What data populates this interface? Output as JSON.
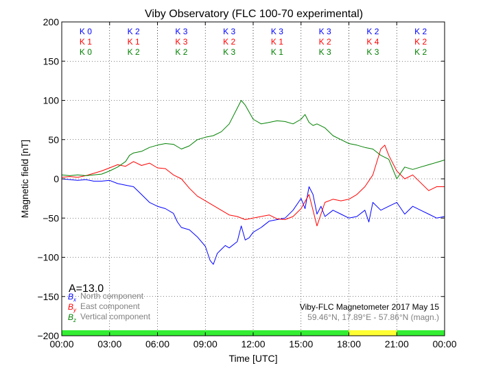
{
  "chart_data": {
    "type": "line",
    "title": "Viby Observatory (FLC 100-70 experimental)",
    "xlabel": "Time [UTC]",
    "ylabel": "Magnetic field [nT]",
    "xlim": [
      0,
      24
    ],
    "ylim": [
      -200,
      200
    ],
    "grid": true,
    "x_tick_labels": [
      "00:00",
      "03:00",
      "06:00",
      "09:00",
      "12:00",
      "15:00",
      "18:00",
      "21:00",
      "00:00"
    ],
    "y_ticks": [
      -200,
      -150,
      -100,
      -50,
      0,
      50,
      100,
      150,
      200
    ],
    "y_tick_labels": [
      "−200",
      "−150",
      "−100",
      "−50",
      "0",
      "50",
      "100",
      "150",
      "200"
    ],
    "series": [
      {
        "name": "North component",
        "symbol_main": "B",
        "symbol_sub": "x",
        "color": "#0000ff",
        "x": [
          0,
          0.5,
          1,
          1.5,
          2,
          2.5,
          3,
          3.5,
          4,
          4.5,
          5,
          5.5,
          6,
          6.5,
          7,
          7.25,
          7.5,
          8,
          8.5,
          9,
          9.3,
          9.5,
          9.75,
          10,
          10.25,
          10.5,
          11,
          11.25,
          11.5,
          11.75,
          12,
          12.5,
          13,
          13.5,
          14,
          14.5,
          15,
          15.25,
          15.5,
          15.75,
          16,
          16.25,
          16.5,
          17,
          17.5,
          18,
          18.5,
          19,
          19.25,
          19.5,
          20,
          20.5,
          21,
          21.5,
          22,
          22.5,
          23,
          23.5,
          24
        ],
        "y": [
          0,
          -1,
          -2,
          -1,
          -3,
          -3,
          -2,
          -6,
          -8,
          -10,
          -20,
          -30,
          -35,
          -38,
          -44,
          -55,
          -62,
          -65,
          -74,
          -86,
          -104,
          -109,
          -95,
          -90,
          -85,
          -88,
          -80,
          -60,
          -78,
          -75,
          -68,
          -62,
          -54,
          -52,
          -50,
          -40,
          -25,
          -38,
          -10,
          -20,
          -45,
          -35,
          -48,
          -40,
          -45,
          -50,
          -48,
          -40,
          -55,
          -30,
          -40,
          -35,
          -30,
          -45,
          -35,
          -40,
          -45,
          -50,
          -48
        ]
      },
      {
        "name": "East component",
        "symbol_main": "B",
        "symbol_sub": "y",
        "color": "#ff0000",
        "x": [
          0,
          0.5,
          1,
          1.5,
          2,
          2.5,
          3,
          3.5,
          4,
          4.5,
          5,
          5.5,
          6,
          6.5,
          7,
          7.5,
          8,
          8.5,
          9,
          9.5,
          10,
          10.5,
          11,
          11.5,
          12,
          12.5,
          13,
          13.5,
          14,
          14.5,
          15,
          15.5,
          16,
          16.5,
          17,
          17.5,
          18,
          18.5,
          19,
          19.5,
          20,
          20.25,
          20.5,
          21,
          21.5,
          22,
          22.5,
          23,
          23.5,
          24
        ],
        "y": [
          2,
          3,
          2,
          4,
          7,
          10,
          14,
          18,
          16,
          22,
          17,
          20,
          14,
          13,
          5,
          0,
          -12,
          -22,
          -28,
          -34,
          -40,
          -46,
          -48,
          -52,
          -50,
          -48,
          -46,
          -51,
          -52,
          -48,
          -38,
          -20,
          -60,
          -30,
          -26,
          -28,
          -26,
          -20,
          -10,
          5,
          38,
          43,
          30,
          10,
          0,
          5,
          -5,
          -15,
          -10,
          -10
        ]
      },
      {
        "name": "Vertical component",
        "symbol_main": "B",
        "symbol_sub": "z",
        "color": "#008000",
        "x": [
          0,
          0.5,
          1,
          1.5,
          2,
          2.5,
          3,
          3.5,
          4,
          4.25,
          4.5,
          5,
          5.5,
          6,
          6.5,
          7,
          7.5,
          8,
          8.5,
          9,
          9.5,
          10,
          10.5,
          11,
          11.25,
          11.5,
          12,
          12.5,
          13,
          13.5,
          14,
          14.5,
          15,
          15.25,
          15.5,
          15.75,
          16,
          16.5,
          17,
          17.5,
          18,
          18.5,
          19,
          19.5,
          20,
          20.5,
          21,
          21.5,
          22,
          22.5,
          23,
          23.5,
          24
        ],
        "y": [
          5,
          4,
          5,
          4,
          5,
          6,
          10,
          15,
          22,
          30,
          33,
          35,
          40,
          43,
          45,
          44,
          38,
          42,
          50,
          53,
          55,
          60,
          70,
          90,
          100,
          94,
          76,
          70,
          72,
          74,
          73,
          70,
          76,
          82,
          72,
          68,
          70,
          65,
          55,
          50,
          45,
          43,
          40,
          38,
          30,
          25,
          0,
          15,
          12,
          15,
          18,
          21,
          24
        ]
      }
    ],
    "k_indices": {
      "columns": 8,
      "rows": [
        {
          "label": "K",
          "color": "#0000ff",
          "values": [
            0,
            2,
            3,
            3,
            3,
            3,
            2,
            2
          ]
        },
        {
          "label": "K",
          "color": "#ff0000",
          "values": [
            1,
            1,
            3,
            2,
            1,
            2,
            4,
            2
          ]
        },
        {
          "label": "K",
          "color": "#008000",
          "values": [
            0,
            2,
            2,
            3,
            1,
            3,
            3,
            2
          ]
        }
      ]
    },
    "status_bar": {
      "colors": {
        "quiet": "#33ee33",
        "active": "#ffff33"
      },
      "segments": [
        {
          "from": 0,
          "to": 18,
          "state": "quiet"
        },
        {
          "from": 18,
          "to": 21,
          "state": "active"
        },
        {
          "from": 21,
          "to": 24,
          "state": "quiet"
        }
      ]
    },
    "annotations": {
      "a_index": "A=13.0",
      "instrument": "Viby-FLC Magnetometer 2017 May 15",
      "coordinates": "59.46°N, 17.89°E - 57.86°N (magn.)"
    }
  }
}
